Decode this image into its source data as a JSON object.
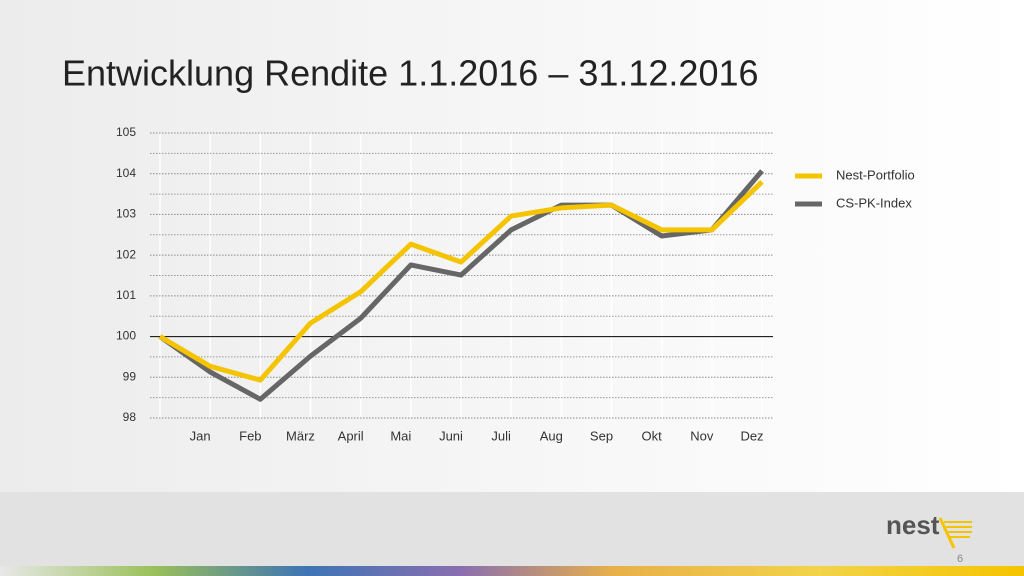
{
  "chart_data": {
    "type": "line",
    "title": "Entwicklung Rendite 1.1.2016 – 31.12.2016",
    "categories": [
      null,
      "Jan",
      "Feb",
      "März",
      "April",
      "Mai",
      "Juni",
      "Juli",
      "Aug",
      "Sep",
      "Okt",
      "Nov",
      "Dez"
    ],
    "series": [
      {
        "name": "Nest-Portfolio",
        "color": "#f5c400",
        "values": [
          100.0,
          99.27,
          98.93,
          100.33,
          101.1,
          102.27,
          101.83,
          102.96,
          103.16,
          103.23,
          102.62,
          102.62,
          103.8
        ]
      },
      {
        "name": "CS-PK-Index",
        "color": "#666666",
        "values": [
          100.0,
          99.13,
          98.46,
          99.52,
          100.45,
          101.76,
          101.51,
          102.62,
          103.23,
          103.23,
          102.47,
          102.62,
          104.07
        ]
      }
    ],
    "ylim": [
      98,
      105
    ],
    "yticks": [
      98,
      99,
      100,
      101,
      102,
      103,
      104,
      105
    ],
    "x_axis_at": 100,
    "grid": true,
    "legend": "right"
  },
  "footer": {
    "logo": "nest",
    "page_number": "6"
  }
}
